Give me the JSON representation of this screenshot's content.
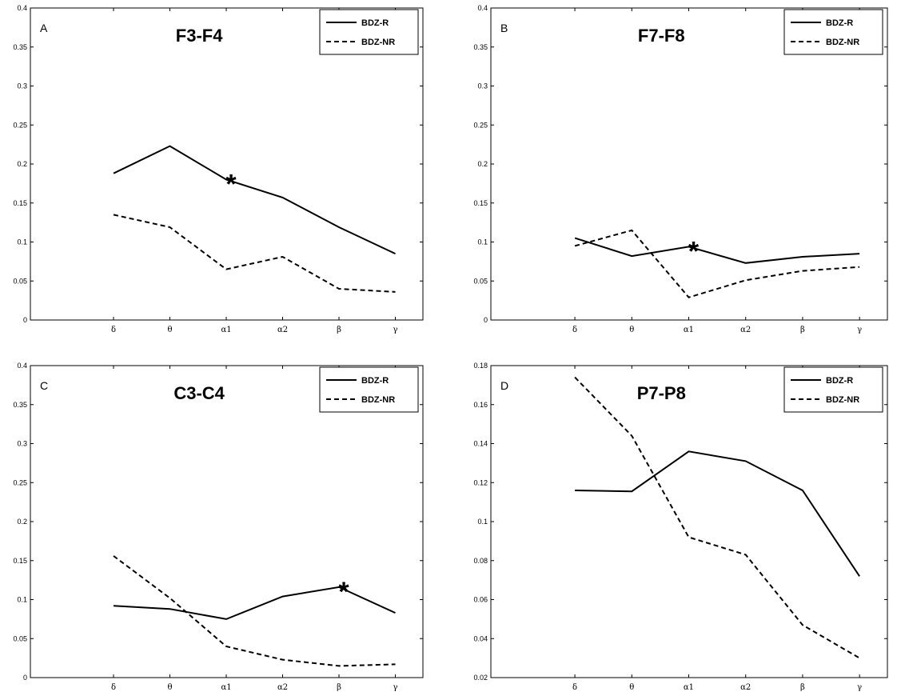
{
  "chart_data": [
    {
      "type": "line",
      "panel": "A",
      "title": "F3-F4",
      "categories": [
        "δ",
        "θ",
        "α1",
        "α2",
        "β",
        "γ"
      ],
      "ylim": [
        0,
        0.4
      ],
      "yticks": [
        0,
        0.05,
        0.1,
        0.15,
        0.2,
        0.25,
        0.3,
        0.35,
        0.4
      ],
      "ytick_labels": [
        "0",
        "0.05",
        "0.1",
        "0.15",
        "0.2",
        "0.25",
        "0.3",
        "0.35",
        "0.4"
      ],
      "legend_position": "top-right",
      "series": [
        {
          "name": "BDZ-R",
          "style": "solid",
          "values": [
            0.188,
            0.223,
            0.18,
            0.157,
            0.119,
            0.085
          ]
        },
        {
          "name": "BDZ-NR",
          "style": "dashed",
          "values": [
            0.135,
            0.119,
            0.065,
            0.081,
            0.04,
            0.036
          ]
        }
      ],
      "annotations": [
        {
          "text": "*",
          "category": "α1",
          "y": 0.183
        }
      ]
    },
    {
      "type": "line",
      "panel": "B",
      "title": "F7-F8",
      "categories": [
        "δ",
        "θ",
        "α1",
        "α2",
        "β",
        "γ"
      ],
      "ylim": [
        0,
        0.4
      ],
      "yticks": [
        0,
        0.05,
        0.1,
        0.15,
        0.2,
        0.25,
        0.3,
        0.35,
        0.4
      ],
      "ytick_labels": [
        "0",
        "0.05",
        "0.1",
        "0.15",
        "0.2",
        "0.25",
        "0.3",
        "0.35",
        "0.4"
      ],
      "legend_position": "top-right",
      "series": [
        {
          "name": "BDZ-R",
          "style": "solid",
          "values": [
            0.105,
            0.082,
            0.094,
            0.073,
            0.081,
            0.085
          ]
        },
        {
          "name": "BDZ-NR",
          "style": "dashed",
          "values": [
            0.095,
            0.115,
            0.029,
            0.051,
            0.063,
            0.068
          ]
        }
      ],
      "annotations": [
        {
          "text": "*",
          "category": "α1",
          "y": 0.097
        }
      ]
    },
    {
      "type": "line",
      "panel": "C",
      "title": "C3-C4",
      "categories": [
        "δ",
        "θ",
        "α1",
        "α2",
        "β",
        "γ"
      ],
      "ylim": [
        0,
        0.4
      ],
      "yticks": [
        0,
        0.05,
        0.1,
        0.15,
        0.2,
        0.25,
        0.3,
        0.35,
        0.4
      ],
      "ytick_labels": [
        "0",
        "0.05",
        "0.1",
        "0.15",
        "0.2",
        "0.25",
        "0.3",
        "0.35",
        "0.4"
      ],
      "legend_position": "top-right",
      "series": [
        {
          "name": "BDZ-R",
          "style": "solid",
          "values": [
            0.092,
            0.088,
            0.075,
            0.104,
            0.116,
            0.083
          ]
        },
        {
          "name": "BDZ-NR",
          "style": "dashed",
          "values": [
            0.156,
            0.102,
            0.04,
            0.023,
            0.015,
            0.017
          ]
        }
      ],
      "annotations": [
        {
          "text": "*",
          "category": "β",
          "y": 0.119
        }
      ]
    },
    {
      "type": "line",
      "panel": "D",
      "title": "P7-P8",
      "categories": [
        "δ",
        "θ",
        "α1",
        "α2",
        "β",
        "γ"
      ],
      "ylim": [
        0.02,
        0.18
      ],
      "yticks": [
        0.02,
        0.04,
        0.06,
        0.08,
        0.1,
        0.12,
        0.14,
        0.16,
        0.18
      ],
      "ytick_labels": [
        "0.02",
        "0.04",
        "0.06",
        "0.08",
        "0.1",
        "0.12",
        "0.14",
        "0.16",
        "0.18"
      ],
      "legend_position": "top-right",
      "series": [
        {
          "name": "BDZ-R",
          "style": "solid",
          "values": [
            0.116,
            0.1155,
            0.136,
            0.131,
            0.116,
            0.072
          ]
        },
        {
          "name": "BDZ-NR",
          "style": "dashed",
          "values": [
            0.174,
            0.144,
            0.092,
            0.083,
            0.047,
            0.03
          ]
        }
      ],
      "annotations": []
    }
  ]
}
